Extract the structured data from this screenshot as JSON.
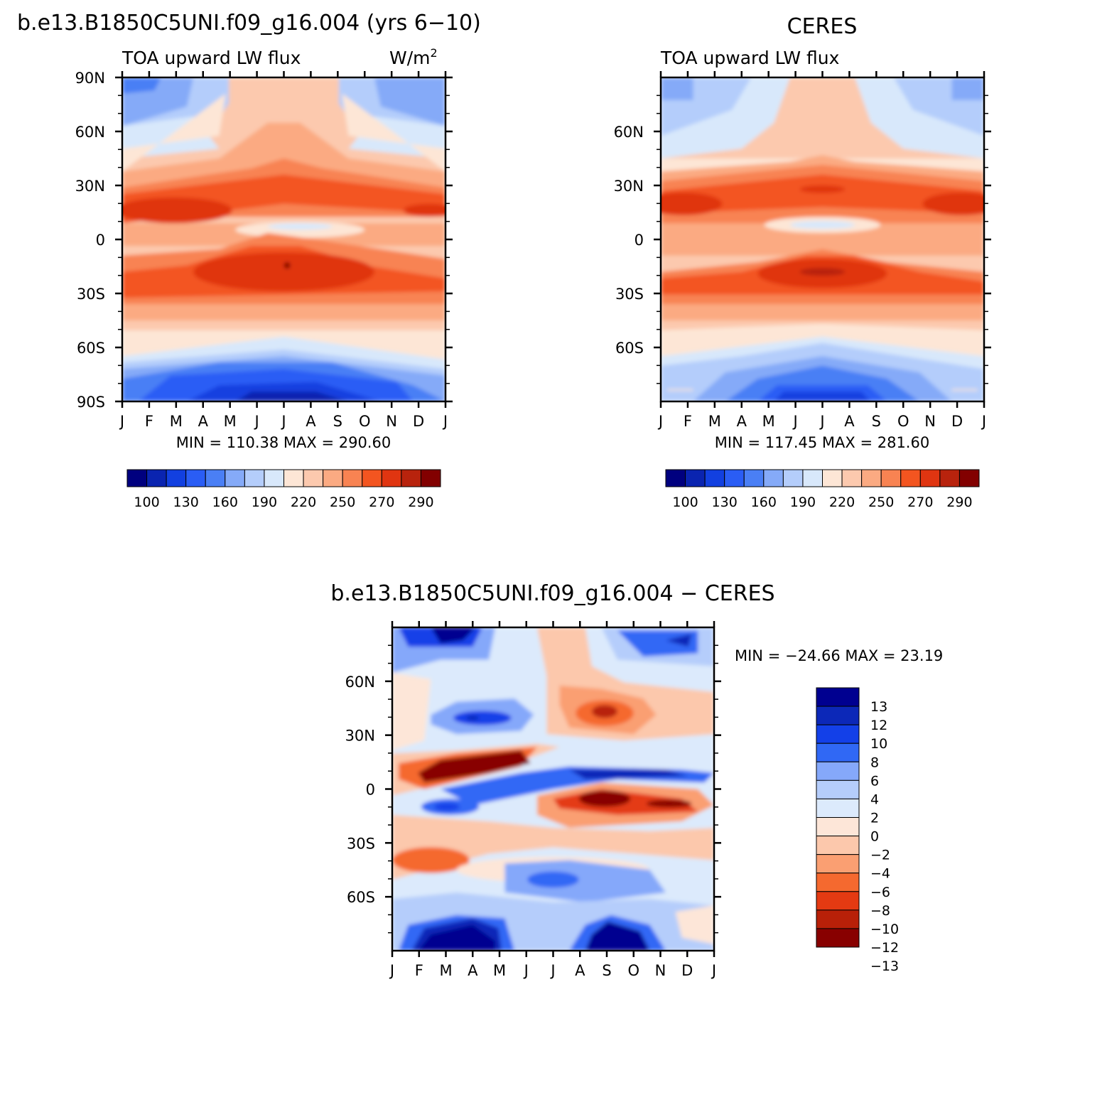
{
  "title_main": "b.e13.B1850C5UNI.f09_g16.004 (yrs 6−10)",
  "units": "W/m",
  "units_sup": "2",
  "months": [
    "J",
    "F",
    "M",
    "A",
    "M",
    "J",
    "J",
    "A",
    "S",
    "O",
    "N",
    "D",
    "J"
  ],
  "colors": {
    "abs": [
      "#00007f",
      "#0a24b0",
      "#1240e0",
      "#2a5df5",
      "#4a7ff5",
      "#85aaf8",
      "#b4cdfb",
      "#d8e8fb",
      "#fde6d6",
      "#fcc9ae",
      "#fbaa82",
      "#f88352",
      "#f35520",
      "#e03511",
      "#b8230d",
      "#820000"
    ],
    "diff": [
      "#000090",
      "#0c28b8",
      "#1340e8",
      "#3068f5",
      "#85a8fa",
      "#b5cdfb",
      "#dceafc",
      "#fde6d8",
      "#fcc8ac",
      "#fa9f72",
      "#f5692f",
      "#e43a12",
      "#b82008",
      "#880000"
    ]
  },
  "panels": {
    "model": {
      "field_label": "TOA upward LW flux",
      "stats": "MIN = 110.38 MAX = 290.60",
      "y_tick_labels": [
        "90N",
        "60N",
        "30N",
        "0",
        "30S",
        "60S",
        "90S"
      ],
      "colorbar_labels": [
        "100",
        "130",
        "160",
        "190",
        "220",
        "250",
        "270",
        "290"
      ]
    },
    "obs": {
      "title": "CERES",
      "field_label": "TOA upward LW flux",
      "stats": "MIN = 117.45 MAX = 281.60",
      "y_tick_labels": [
        "60N",
        "30N",
        "0",
        "30S",
        "60S"
      ],
      "colorbar_labels": [
        "100",
        "130",
        "160",
        "190",
        "220",
        "250",
        "270",
        "290"
      ]
    },
    "diff": {
      "title": "b.e13.B1850C5UNI.f09_g16.004 − CERES",
      "stats": "MIN = −24.66 MAX =  23.19",
      "y_tick_labels": [
        "60N",
        "30N",
        "0",
        "30S",
        "60S"
      ],
      "colorbar_labels": [
        "13",
        "12",
        "10",
        "8",
        "6",
        "4",
        "2",
        "0",
        "−2",
        "−4",
        "−6",
        "−8",
        "−10",
        "−12",
        "−13"
      ]
    }
  },
  "chart_data": [
    {
      "type": "heatmap",
      "title": "b.e13.B1850C5UNI.f09_g16.004 (yrs 6−10)",
      "subtitle": "TOA upward LW flux",
      "units": "W/m2",
      "x": [
        "J",
        "F",
        "M",
        "A",
        "M",
        "J",
        "J",
        "A",
        "S",
        "O",
        "N",
        "D",
        "J"
      ],
      "ylim": [
        -90,
        90
      ],
      "y_ticks": [
        "90N",
        "60N",
        "30N",
        "0",
        "30S",
        "60S",
        "90S"
      ],
      "min": 110.38,
      "max": 290.6,
      "levels": [
        100,
        110,
        120,
        130,
        140,
        150,
        160,
        170,
        180,
        190,
        200,
        210,
        220,
        230,
        240,
        250,
        260,
        270,
        280,
        290
      ]
    },
    {
      "type": "heatmap",
      "title": "CERES",
      "subtitle": "TOA upward LW flux",
      "x": [
        "J",
        "F",
        "M",
        "A",
        "M",
        "J",
        "J",
        "A",
        "S",
        "O",
        "N",
        "D",
        "J"
      ],
      "ylim": [
        -90,
        90
      ],
      "y_ticks": [
        "60N",
        "30N",
        "0",
        "30S",
        "60S"
      ],
      "min": 117.45,
      "max": 281.6,
      "levels": [
        100,
        110,
        120,
        130,
        140,
        150,
        160,
        170,
        180,
        190,
        200,
        210,
        220,
        230,
        240,
        250,
        260,
        270,
        280,
        290
      ]
    },
    {
      "type": "heatmap",
      "title": "b.e13.B1850C5UNI.f09_g16.004 − CERES",
      "x": [
        "J",
        "F",
        "M",
        "A",
        "M",
        "J",
        "J",
        "A",
        "S",
        "O",
        "N",
        "D",
        "J"
      ],
      "ylim": [
        -90,
        90
      ],
      "y_ticks": [
        "60N",
        "30N",
        "0",
        "30S",
        "60S"
      ],
      "min": -24.66,
      "max": 23.19,
      "levels": [
        -13,
        -12,
        -10,
        -8,
        -6,
        -4,
        -2,
        0,
        2,
        4,
        6,
        8,
        10,
        12,
        13
      ]
    }
  ]
}
